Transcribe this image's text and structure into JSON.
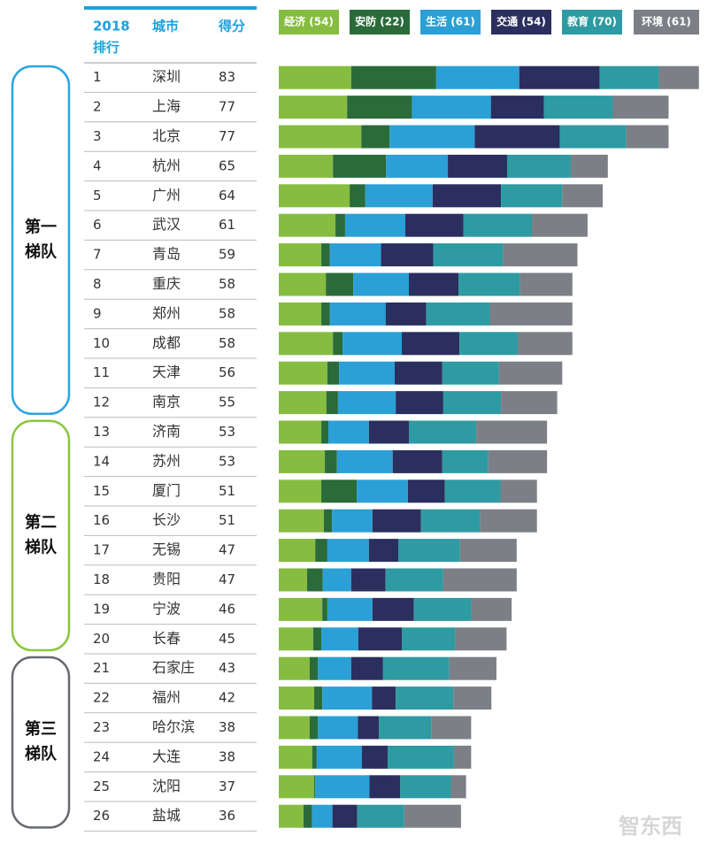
{
  "chart_data": {
    "type": "bar",
    "stacked": true,
    "headers": {
      "rank": [
        "2018",
        "排行"
      ],
      "city": "城市",
      "score": "得分"
    },
    "tiers": [
      {
        "label": [
          "第一",
          "梯队"
        ],
        "rows": [
          1,
          12
        ]
      },
      {
        "label": [
          "第二",
          "梯队"
        ],
        "rows": [
          13,
          20
        ]
      },
      {
        "label": [
          "第三",
          "梯队"
        ],
        "rows": [
          21,
          26
        ]
      }
    ],
    "ranks": [
      1,
      2,
      3,
      4,
      5,
      6,
      7,
      8,
      9,
      10,
      11,
      12,
      13,
      14,
      15,
      16,
      17,
      18,
      19,
      20,
      21,
      22,
      23,
      24,
      25,
      26
    ],
    "categories": [
      "深圳",
      "上海",
      "北京",
      "杭州",
      "广州",
      "武汉",
      "青岛",
      "重庆",
      "郑州",
      "成都",
      "天津",
      "南京",
      "济南",
      "苏州",
      "厦门",
      "长沙",
      "无锡",
      "贵阳",
      "宁波",
      "长春",
      "石家庄",
      "福州",
      "哈尔滨",
      "大连",
      "沈阳",
      "盐城"
    ],
    "scores": [
      83,
      77,
      77,
      65,
      64,
      61,
      59,
      58,
      58,
      58,
      56,
      55,
      53,
      53,
      51,
      51,
      47,
      47,
      46,
      45,
      43,
      42,
      38,
      38,
      37,
      36
    ],
    "series": [
      {
        "name": "经济 (54)",
        "color": "#86bc40",
        "values": [
          14.3,
          13.5,
          16.3,
          10.7,
          14.0,
          11.2,
          8.4,
          9.3,
          8.4,
          10.7,
          9.6,
          9.4,
          8.4,
          9.1,
          8.4,
          8.9,
          7.2,
          5.6,
          8.6,
          6.8,
          6.1,
          7.0,
          6.1,
          6.6,
          7.0,
          4.9
        ]
      },
      {
        "name": "安防 (22)",
        "color": "#2b6b3a",
        "values": [
          16.8,
          12.8,
          5.6,
          10.5,
          3.1,
          1.9,
          1.7,
          5.4,
          1.7,
          1.9,
          2.3,
          2.3,
          1.4,
          2.4,
          7.0,
          1.6,
          2.4,
          3.1,
          1.0,
          1.6,
          1.6,
          1.6,
          1.6,
          0.9,
          0.2,
          1.7
        ]
      },
      {
        "name": "生活 (61)",
        "color": "#2aa0d6",
        "values": [
          16.4,
          15.6,
          16.8,
          12.2,
          13.3,
          11.9,
          10.1,
          11.0,
          11.0,
          11.7,
          11.0,
          11.4,
          8.0,
          11.0,
          10.1,
          8.0,
          8.2,
          5.6,
          8.9,
          7.3,
          6.6,
          9.8,
          7.9,
          8.9,
          10.7,
          4.0
        ]
      },
      {
        "name": "交通 (54)",
        "color": "#2b2f5f",
        "values": [
          15.9,
          10.5,
          16.8,
          11.7,
          13.5,
          11.5,
          10.3,
          9.8,
          8.0,
          11.4,
          9.4,
          9.4,
          7.9,
          9.8,
          7.3,
          9.6,
          5.8,
          6.8,
          8.2,
          8.6,
          6.3,
          4.7,
          4.2,
          5.1,
          6.1,
          4.9
        ]
      },
      {
        "name": "教育 (70)",
        "color": "#2e9aa2",
        "values": [
          11.7,
          13.6,
          13.1,
          12.6,
          12.1,
          13.5,
          13.8,
          12.2,
          12.6,
          11.5,
          11.2,
          11.4,
          13.3,
          9.1,
          11.0,
          11.7,
          12.2,
          11.4,
          11.4,
          10.5,
          13.1,
          11.4,
          10.3,
          13.1,
          10.0,
          9.3
        ]
      },
      {
        "name": "环境 (61)",
        "color": "#7c7f86",
        "values": [
          7.9,
          11.0,
          8.4,
          7.3,
          8.0,
          11.0,
          14.7,
          10.3,
          16.3,
          10.8,
          12.5,
          11.1,
          14.0,
          11.6,
          7.2,
          11.2,
          11.2,
          14.5,
          7.9,
          10.2,
          9.3,
          7.5,
          7.9,
          3.4,
          3.0,
          11.2
        ]
      }
    ],
    "watermark": "智东西"
  }
}
